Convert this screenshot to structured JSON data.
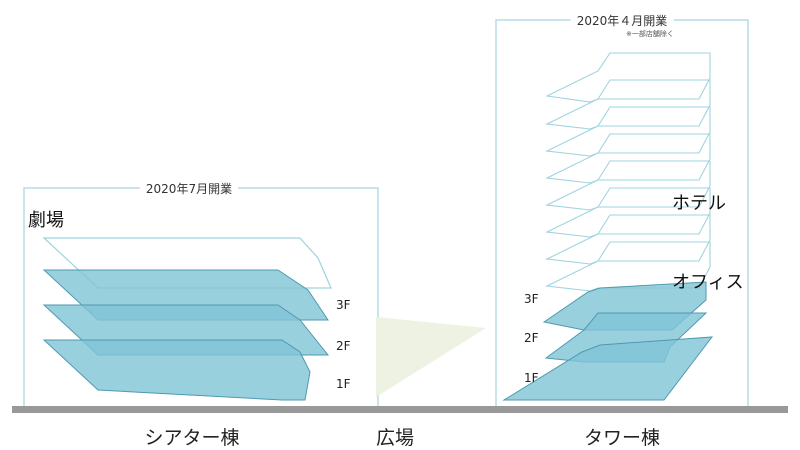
{
  "colors": {
    "frame": "#b7dbe6",
    "outline": "#9fd3e0",
    "floor_fill": "#7fc4d6",
    "floor_stroke": "#4f99b0",
    "ground": "#999999",
    "plaza": "#eef2e2"
  },
  "theater": {
    "opening": "2020年7月開業",
    "label": "劇場",
    "floors": [
      "3F",
      "2F",
      "1F"
    ],
    "building_name": "シアター棟"
  },
  "plaza": {
    "name": "広場"
  },
  "tower": {
    "opening": "2020年４月開業",
    "note": "※一部店舗除く",
    "hotel_label": "ホテル",
    "office_label": "オフィス",
    "floors": [
      "3F",
      "2F",
      "1F"
    ],
    "building_name": "タワー棟"
  }
}
